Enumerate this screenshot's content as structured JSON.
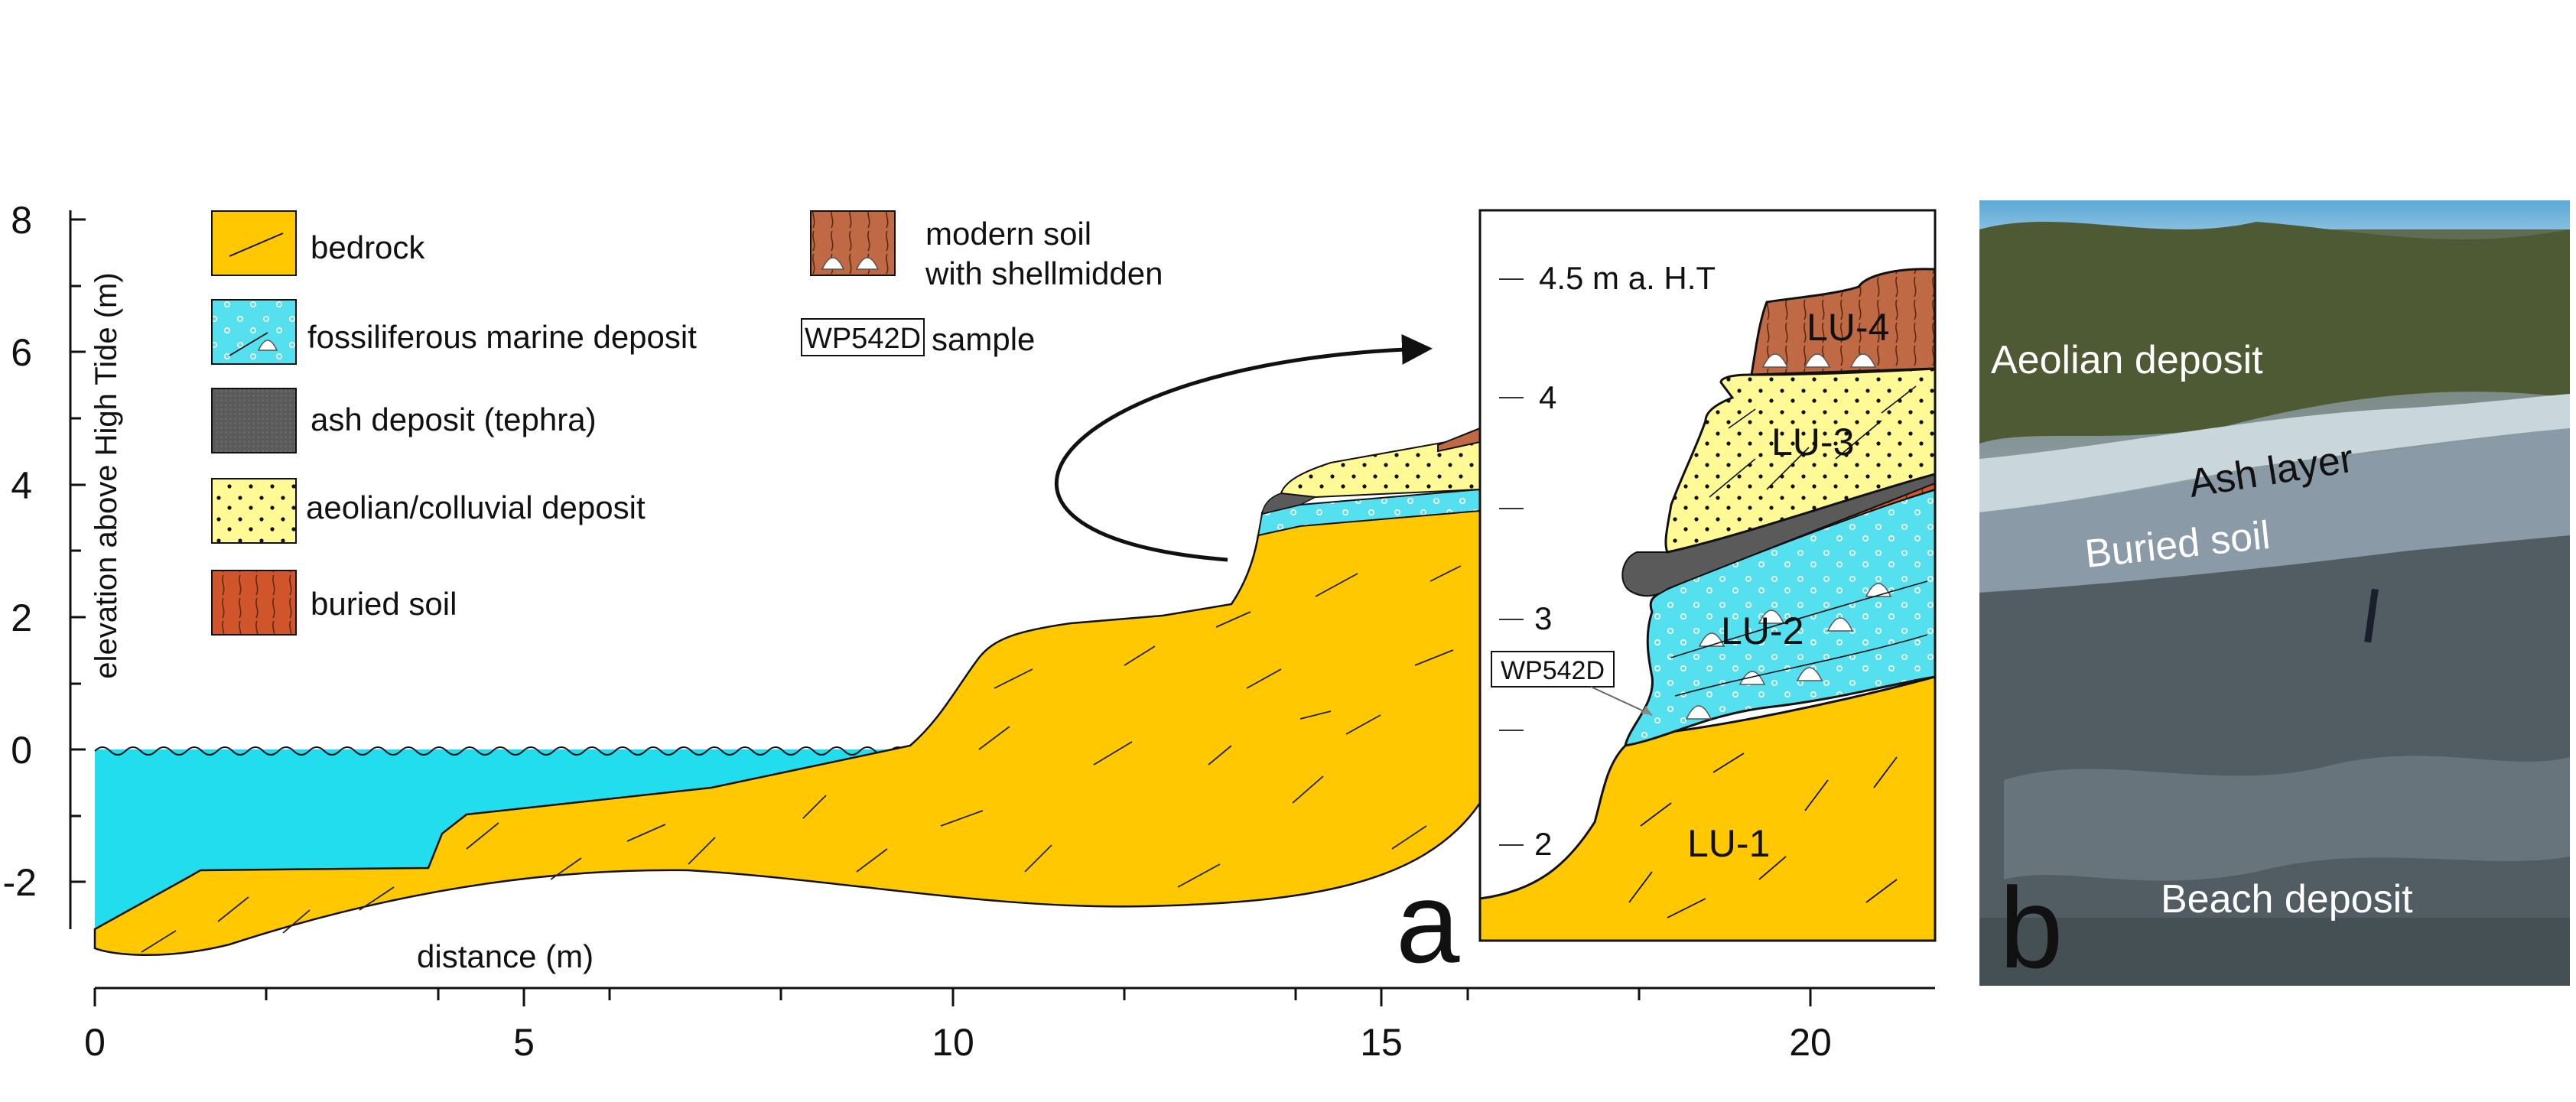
{
  "axes": {
    "ylabel": "elevation above High Tide (m)",
    "xlabel": "distance (m)",
    "yticks": [
      "8",
      "6",
      "4",
      "2",
      "0",
      "-2"
    ],
    "xticks": [
      "0",
      "5",
      "10",
      "15",
      "20"
    ]
  },
  "legend": {
    "bedrock": "bedrock",
    "marine": "fossiliferous marine deposit",
    "ash": "ash deposit (tephra)",
    "aeolian": "aeolian/colluvial deposit",
    "buried_soil": "buried soil",
    "modern_soil_line1": "modern soil",
    "modern_soil_line2": "with shellmidden",
    "sample_box": "WP542D",
    "sample_text": "sample"
  },
  "inset": {
    "ticks": [
      "4.5 m a. H.T",
      "4",
      "3",
      "2"
    ],
    "units": [
      "LU-4",
      "LU-3",
      "LU-2",
      "LU-1"
    ],
    "sample_label": "WP542D"
  },
  "panel_labels": {
    "a": "a",
    "b": "b"
  },
  "photo": {
    "labels": [
      "Aeolian deposit",
      "Ash layer",
      "Buried soil",
      "Beach deposit"
    ]
  },
  "colors": {
    "bedrock": "#FFC800",
    "marine": "#55E0F0",
    "sea": "#22DDEE",
    "ash": "#5a5a5a",
    "aeolian": "#FFFA96",
    "buried_soil": "#D1552A",
    "modern_soil": "#C06A45"
  }
}
